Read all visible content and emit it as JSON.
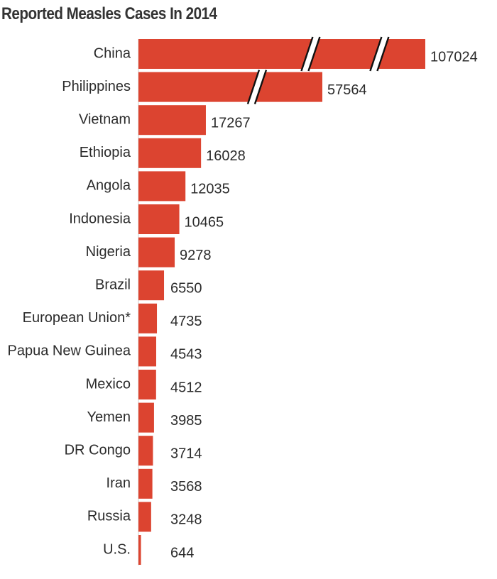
{
  "chart_data": {
    "type": "bar",
    "orientation": "horizontal",
    "title": "Reported Measles Cases In 2014",
    "categories": [
      "China",
      "Philippines",
      "Vietnam",
      "Ethiopia",
      "Angola",
      "Indonesia",
      "Nigeria",
      "Brazil",
      "European Union*",
      "Papua New Guinea",
      "Mexico",
      "Yemen",
      "DR Congo",
      "Iran",
      "Russia",
      "U.S."
    ],
    "values": [
      107024,
      57564,
      17267,
      16028,
      12035,
      10465,
      9278,
      6550,
      4735,
      4543,
      4512,
      3985,
      3714,
      3568,
      3248,
      644
    ],
    "value_labels": [
      "107024",
      "57564",
      "17267",
      "16028",
      "12035",
      "10465",
      "9278",
      "6550",
      "4735",
      "4543",
      "4512",
      "3985",
      "3714",
      "3568",
      "3248",
      "644"
    ],
    "axis_breaks": [
      2,
      1,
      0,
      0,
      0,
      0,
      0,
      0,
      0,
      0,
      0,
      0,
      0,
      0,
      0,
      0
    ],
    "bar_color": "#dc4430",
    "grid": false,
    "legend": "none"
  }
}
